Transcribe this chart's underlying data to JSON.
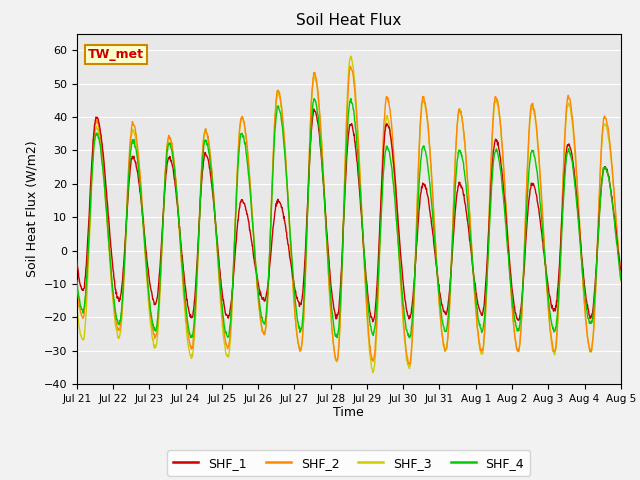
{
  "title": "Soil Heat Flux",
  "xlabel": "Time",
  "ylabel": "Soil Heat Flux (W/m2)",
  "ylim": [
    -40,
    65
  ],
  "yticks": [
    -40,
    -30,
    -20,
    -10,
    0,
    10,
    20,
    30,
    40,
    50,
    60
  ],
  "annotation": "TW_met",
  "annotation_color": "#cc0000",
  "annotation_bg": "#ffffcc",
  "annotation_border": "#cc8800",
  "colors": {
    "SHF_1": "#cc0000",
    "SHF_2": "#ff8800",
    "SHF_3": "#cccc00",
    "SHF_4": "#00cc00"
  },
  "fig_bg": "#f2f2f2",
  "plot_bg": "#e8e8e8",
  "grid_color": "#ffffff",
  "n_days": 15,
  "pts_per_day": 96,
  "peak_hour": 13,
  "trough_hour": 4
}
